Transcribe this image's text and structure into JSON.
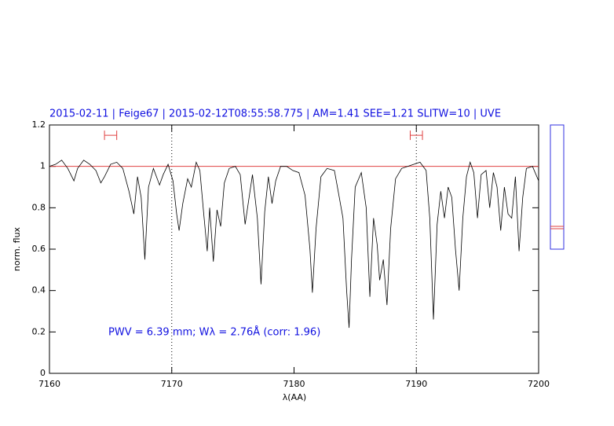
{
  "chart_data": {
    "type": "line",
    "title": "2015-02-11 | Feige67 | 2015-02-12T08:55:58.775 | AM=1.41 SEE=1.21 SLITW=10 | UVE",
    "xlabel": "λ(AA)",
    "ylabel": "norm. flux",
    "annotation": "PWV = 6.39 mm; Wλ = 2.76Å (corr: 1.96)",
    "xlim": [
      7160,
      7200
    ],
    "ylim": [
      0,
      1.2
    ],
    "xticks": [
      7160,
      7170,
      7180,
      7190,
      7200
    ],
    "yticks": [
      0,
      0.2,
      0.4,
      0.6,
      0.8,
      1,
      1.2
    ],
    "markers": [
      7170,
      7190
    ],
    "continuum_level": 1,
    "continuum_color": "#e04040",
    "continuum_windows": [
      [
        7164.5,
        7165.5
      ],
      [
        7189.5,
        7190.5
      ]
    ],
    "window_level": 1.15,
    "x": [
      7160.0,
      7160.5,
      7161.0,
      7161.5,
      7162.0,
      7162.3,
      7162.8,
      7163.3,
      7163.8,
      7164.2,
      7164.5,
      7165.0,
      7165.5,
      7166.0,
      7166.5,
      7166.9,
      7167.2,
      7167.5,
      7167.8,
      7168.1,
      7168.5,
      7169.0,
      7169.3,
      7169.7,
      7170.1,
      7170.4,
      7170.6,
      7170.9,
      7171.3,
      7171.6,
      7172.0,
      7172.3,
      7172.6,
      7172.9,
      7173.1,
      7173.4,
      7173.7,
      7174.0,
      7174.3,
      7174.7,
      7175.2,
      7175.6,
      7176.0,
      7176.3,
      7176.6,
      7177.0,
      7177.3,
      7177.6,
      7177.9,
      7178.2,
      7178.5,
      7178.9,
      7179.4,
      7179.9,
      7180.4,
      7180.9,
      7181.3,
      7181.5,
      7181.8,
      7182.2,
      7182.7,
      7183.3,
      7183.7,
      7184.0,
      7184.3,
      7184.5,
      7184.7,
      7185.0,
      7185.5,
      7185.9,
      7186.2,
      7186.5,
      7186.8,
      7187.0,
      7187.3,
      7187.6,
      7187.9,
      7188.3,
      7188.8,
      7189.3,
      7189.8,
      7190.3,
      7190.8,
      7191.1,
      7191.4,
      7191.7,
      7192.0,
      7192.3,
      7192.6,
      7192.9,
      7193.2,
      7193.5,
      7193.8,
      7194.1,
      7194.4,
      7194.7,
      7195.0,
      7195.3,
      7195.7,
      7196.0,
      7196.3,
      7196.6,
      7196.9,
      7197.2,
      7197.5,
      7197.8,
      7198.1,
      7198.4,
      7198.7,
      7199.0,
      7199.5,
      7200.0
    ],
    "series": [
      {
        "color": "#000000",
        "values": [
          1.0,
          1.01,
          1.03,
          0.99,
          0.93,
          0.99,
          1.03,
          1.01,
          0.98,
          0.92,
          0.95,
          1.01,
          1.02,
          0.99,
          0.88,
          0.77,
          0.95,
          0.85,
          0.55,
          0.9,
          0.99,
          0.91,
          0.96,
          1.01,
          0.93,
          0.77,
          0.69,
          0.82,
          0.94,
          0.9,
          1.02,
          0.98,
          0.78,
          0.59,
          0.8,
          0.54,
          0.79,
          0.71,
          0.92,
          0.99,
          1.0,
          0.96,
          0.72,
          0.84,
          0.96,
          0.75,
          0.43,
          0.78,
          0.95,
          0.82,
          0.93,
          1.0,
          1.0,
          0.98,
          0.97,
          0.86,
          0.6,
          0.39,
          0.7,
          0.95,
          0.99,
          0.98,
          0.85,
          0.75,
          0.4,
          0.22,
          0.55,
          0.9,
          0.97,
          0.8,
          0.37,
          0.75,
          0.62,
          0.45,
          0.55,
          0.33,
          0.7,
          0.94,
          0.99,
          1.0,
          1.01,
          1.02,
          0.98,
          0.75,
          0.26,
          0.72,
          0.88,
          0.75,
          0.9,
          0.85,
          0.6,
          0.4,
          0.75,
          0.95,
          1.02,
          0.97,
          0.75,
          0.96,
          0.98,
          0.8,
          0.97,
          0.9,
          0.69,
          0.9,
          0.77,
          0.75,
          0.95,
          0.59,
          0.85,
          0.99,
          1.0,
          0.93
        ]
      }
    ]
  }
}
